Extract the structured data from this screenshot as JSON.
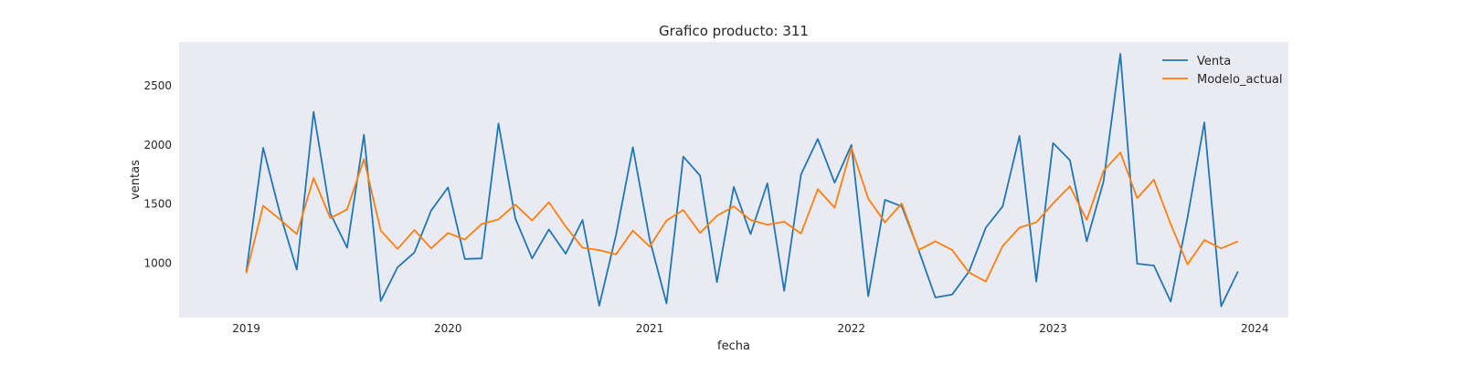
{
  "chart_data": {
    "type": "line",
    "title": "Grafico producto: 311",
    "xlabel": "fecha",
    "ylabel": "ventas",
    "x_ticks": [
      "2019",
      "2020",
      "2021",
      "2022",
      "2023",
      "2024"
    ],
    "y_ticks": [
      1000,
      1500,
      2000,
      2500
    ],
    "xlim": [
      "2018-09",
      "2024-03"
    ],
    "ylim": [
      540,
      2870
    ],
    "grid": false,
    "background": "#eaeaf2",
    "legend_position": "top-right",
    "x": [
      "2019-01",
      "2019-02",
      "2019-03",
      "2019-04",
      "2019-05",
      "2019-06",
      "2019-07",
      "2019-08",
      "2019-09",
      "2019-10",
      "2019-11",
      "2019-12",
      "2020-01",
      "2020-02",
      "2020-03",
      "2020-04",
      "2020-05",
      "2020-06",
      "2020-07",
      "2020-08",
      "2020-09",
      "2020-10",
      "2020-11",
      "2020-12",
      "2021-01",
      "2021-02",
      "2021-03",
      "2021-04",
      "2021-05",
      "2021-06",
      "2021-07",
      "2021-08",
      "2021-09",
      "2021-10",
      "2021-11",
      "2021-12",
      "2022-01",
      "2022-02",
      "2022-03",
      "2022-04",
      "2022-05",
      "2022-06",
      "2022-07",
      "2022-08",
      "2022-09",
      "2022-10",
      "2022-11",
      "2022-12",
      "2023-01",
      "2023-02",
      "2023-03",
      "2023-04",
      "2023-05",
      "2023-06",
      "2023-07",
      "2023-08",
      "2023-09",
      "2023-10",
      "2023-11",
      "2023-12"
    ],
    "series": [
      {
        "name": "Venta",
        "color": "#1f77b4",
        "values": [
          930,
          1975,
          1420,
          945,
          2280,
          1420,
          1130,
          2085,
          680,
          965,
          1090,
          1445,
          1640,
          1035,
          1040,
          2180,
          1380,
          1040,
          1285,
          1080,
          1365,
          640,
          1240,
          1980,
          1200,
          660,
          1900,
          1740,
          840,
          1645,
          1245,
          1675,
          765,
          1750,
          2050,
          1680,
          2000,
          720,
          1535,
          1480,
          1110,
          710,
          735,
          930,
          1300,
          1480,
          2075,
          845,
          2015,
          1870,
          1185,
          1690,
          2770,
          995,
          980,
          675,
          1385,
          2190,
          635,
          930
        ]
      },
      {
        "name": "Modelo_actual",
        "color": "#ff7f0e",
        "values": [
          915,
          1485,
          1370,
          1245,
          1720,
          1380,
          1455,
          1880,
          1275,
          1120,
          1280,
          1125,
          1255,
          1200,
          1330,
          1370,
          1495,
          1360,
          1515,
          1310,
          1130,
          1110,
          1075,
          1275,
          1140,
          1360,
          1450,
          1255,
          1400,
          1480,
          1365,
          1325,
          1350,
          1250,
          1625,
          1470,
          1975,
          1545,
          1345,
          1505,
          1110,
          1185,
          1110,
          920,
          845,
          1145,
          1300,
          1345,
          1505,
          1650,
          1365,
          1780,
          1935,
          1550,
          1705,
          1330,
          990,
          1195,
          1125,
          1185
        ]
      }
    ]
  }
}
